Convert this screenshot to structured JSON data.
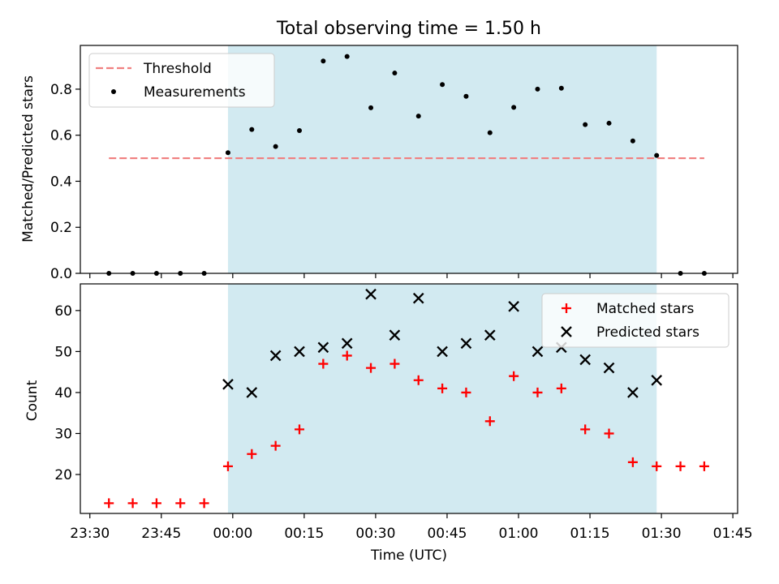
{
  "title": "Total observing time = 1.50 h",
  "chart_data": [
    {
      "type": "scatter",
      "panel": "top",
      "ylabel": "Matched/Predicted stars",
      "ylim": [
        0,
        0.99
      ],
      "yticks": [
        0.0,
        0.2,
        0.4,
        0.6,
        0.8
      ],
      "ytick_labels": [
        "0.0",
        "0.2",
        "0.4",
        "0.6",
        "0.8"
      ],
      "xlim_minutes": [
        -32,
        106
      ],
      "shaded_span_minutes": [
        -1,
        89
      ],
      "shade_color": "#add8e6",
      "legend": {
        "placement": "upper-left",
        "entries": [
          "Threshold",
          "Measurements"
        ]
      },
      "series": [
        {
          "name": "Threshold",
          "kind": "dashed-line",
          "color": "#f08080",
          "x": [
            "23:34",
            "01:39"
          ],
          "y": [
            0.5,
            0.5
          ]
        },
        {
          "name": "Measurements",
          "kind": "dot",
          "color": "#000000",
          "x": [
            "23:34",
            "23:39",
            "23:44",
            "23:49",
            "23:54",
            "23:59",
            "00:04",
            "00:09",
            "00:14",
            "00:19",
            "00:24",
            "00:29",
            "00:34",
            "00:39",
            "00:44",
            "00:49",
            "00:54",
            "00:59",
            "01:04",
            "01:09",
            "01:14",
            "01:19",
            "01:24",
            "01:29",
            "01:34",
            "01:39"
          ],
          "y": [
            0,
            0,
            0,
            0,
            0,
            0.524,
            0.625,
            0.551,
            0.62,
            0.922,
            0.942,
            0.719,
            0.87,
            0.683,
            0.82,
            0.769,
            0.611,
            0.721,
            0.8,
            0.804,
            0.646,
            0.652,
            0.575,
            0.512,
            0,
            0
          ]
        }
      ]
    },
    {
      "type": "scatter",
      "panel": "bottom",
      "xlabel": "Time (UTC)",
      "ylabel": "Count",
      "ylim": [
        10.5,
        66.5
      ],
      "yticks": [
        20,
        30,
        40,
        50,
        60
      ],
      "ytick_labels": [
        "20",
        "30",
        "40",
        "50",
        "60"
      ],
      "xlim_minutes": [
        -32,
        106
      ],
      "xticks_minutes": [
        -30,
        -15,
        0,
        15,
        30,
        45,
        60,
        75,
        90,
        105
      ],
      "xtick_labels": [
        "23:30",
        "23:45",
        "00:00",
        "00:15",
        "00:30",
        "00:45",
        "01:00",
        "01:15",
        "01:30",
        "01:45"
      ],
      "shaded_span_minutes": [
        -1,
        89
      ],
      "shade_color": "#add8e6",
      "legend": {
        "placement": "upper-right",
        "entries": [
          "Matched stars",
          "Predicted stars"
        ]
      },
      "series": [
        {
          "name": "Matched stars",
          "kind": "plus",
          "color": "#ff0000",
          "x": [
            "23:34",
            "23:39",
            "23:44",
            "23:49",
            "23:54",
            "23:59",
            "00:04",
            "00:09",
            "00:14",
            "00:19",
            "00:24",
            "00:29",
            "00:34",
            "00:39",
            "00:44",
            "00:49",
            "00:54",
            "00:59",
            "01:04",
            "01:09",
            "01:14",
            "01:19",
            "01:24",
            "01:29",
            "01:34",
            "01:39"
          ],
          "y": [
            13,
            13,
            13,
            13,
            13,
            22,
            25,
            27,
            31,
            47,
            49,
            46,
            47,
            43,
            41,
            40,
            33,
            44,
            40,
            41,
            31,
            30,
            23,
            22,
            22,
            22
          ]
        },
        {
          "name": "Predicted stars",
          "kind": "cross",
          "color": "#000000",
          "x": [
            "23:59",
            "00:04",
            "00:09",
            "00:14",
            "00:19",
            "00:24",
            "00:29",
            "00:34",
            "00:39",
            "00:44",
            "00:49",
            "00:54",
            "00:59",
            "01:04",
            "01:09",
            "01:14",
            "01:19",
            "01:24",
            "01:29"
          ],
          "y": [
            42,
            40,
            49,
            50,
            51,
            52,
            64,
            54,
            63,
            50,
            52,
            54,
            61,
            50,
            51,
            48,
            46,
            40,
            43
          ]
        }
      ]
    }
  ]
}
